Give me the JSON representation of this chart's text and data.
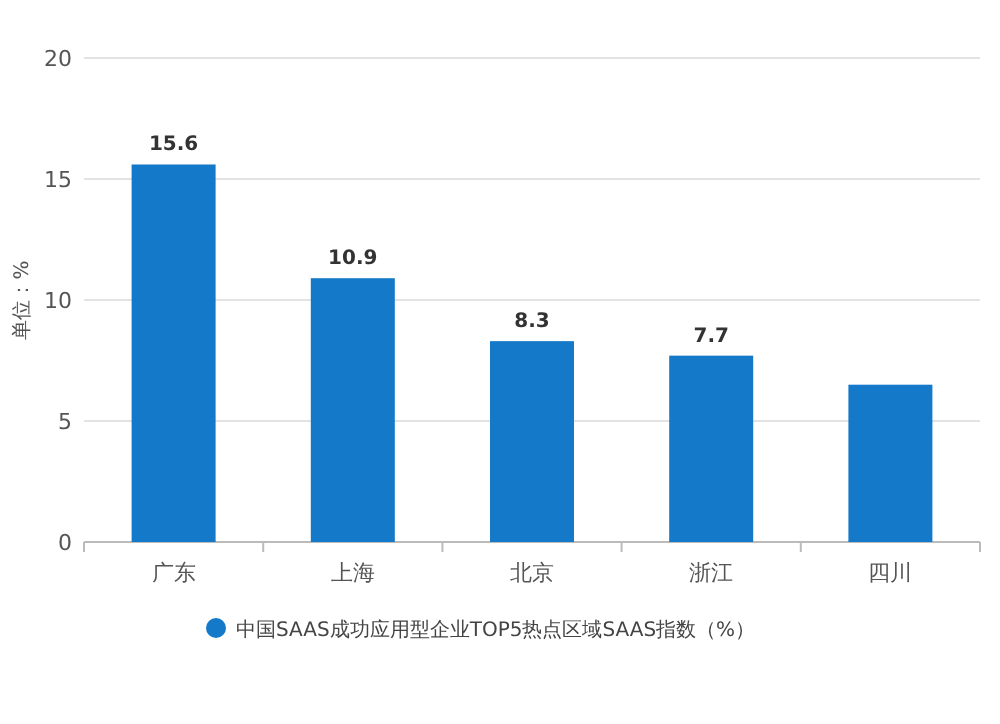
{
  "chart_data": {
    "type": "bar",
    "ylabel": "单位：%",
    "categories": [
      "广东",
      "上海",
      "北京",
      "浙江",
      "四川"
    ],
    "series": [
      {
        "name": "中国SAAS成功应用型企业TOP5热点区域SAAS指数（%）",
        "color": "#1479c9",
        "values": [
          15.6,
          10.9,
          8.3,
          7.7,
          6.5
        ],
        "value_labels": [
          "15.6",
          "10.9",
          "8.3",
          "7.7",
          null
        ]
      }
    ],
    "ylim": [
      0,
      20
    ],
    "yticks": [
      0,
      5,
      10,
      15,
      20
    ],
    "grid": "y",
    "legend": "bottom"
  }
}
